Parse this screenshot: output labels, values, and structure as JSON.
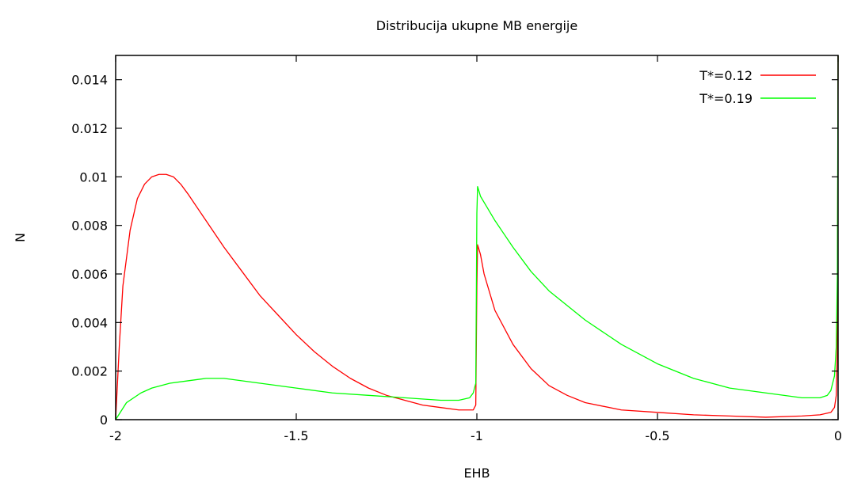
{
  "chart_data": {
    "type": "line",
    "title": "Distribucija ukupne MB energije",
    "xlabel": "EHB",
    "ylabel": "N",
    "xlim": [
      -2,
      0
    ],
    "ylim": [
      0,
      0.015
    ],
    "xticks": [
      -2,
      -1.5,
      -1,
      -0.5,
      0
    ],
    "xtick_labels": [
      "-2",
      "-1.5",
      "-1",
      "-0.5",
      "0"
    ],
    "yticks": [
      0,
      0.002,
      0.004,
      0.006,
      0.008,
      0.01,
      0.012,
      0.014
    ],
    "ytick_labels": [
      "0",
      "0.002",
      "0.004",
      "0.006",
      "0.008",
      "0.01",
      "0.012",
      "0.014"
    ],
    "grid": false,
    "legend_position": "top-right",
    "series": [
      {
        "name": "T*=0.12",
        "color": "#ff0000",
        "x": [
          -2.0,
          -1.99,
          -1.98,
          -1.96,
          -1.94,
          -1.92,
          -1.9,
          -1.88,
          -1.86,
          -1.84,
          -1.82,
          -1.8,
          -1.75,
          -1.7,
          -1.65,
          -1.6,
          -1.55,
          -1.5,
          -1.45,
          -1.4,
          -1.35,
          -1.3,
          -1.25,
          -1.2,
          -1.15,
          -1.1,
          -1.05,
          -1.01,
          -1.003,
          -1.0,
          -0.998,
          -0.99,
          -0.98,
          -0.95,
          -0.9,
          -0.85,
          -0.8,
          -0.75,
          -0.7,
          -0.6,
          -0.5,
          -0.4,
          -0.3,
          -0.2,
          -0.1,
          -0.05,
          -0.02,
          -0.01,
          -0.005,
          -0.002,
          0.0
        ],
        "y": [
          0.0,
          0.003,
          0.0055,
          0.0078,
          0.0091,
          0.0097,
          0.01,
          0.0101,
          0.0101,
          0.01,
          0.0097,
          0.0093,
          0.0082,
          0.0071,
          0.0061,
          0.0051,
          0.0043,
          0.0035,
          0.0028,
          0.0022,
          0.0017,
          0.0013,
          0.001,
          0.0008,
          0.0006,
          0.0005,
          0.0004,
          0.0004,
          0.0006,
          0.0055,
          0.0072,
          0.0068,
          0.006,
          0.0045,
          0.0031,
          0.0021,
          0.0014,
          0.001,
          0.0007,
          0.0004,
          0.0003,
          0.0002,
          0.00015,
          0.0001,
          0.00015,
          0.0002,
          0.0003,
          0.0005,
          0.001,
          0.003,
          0.015
        ]
      },
      {
        "name": "T*=0.19",
        "color": "#00ff00",
        "x": [
          -2.0,
          -1.97,
          -1.93,
          -1.9,
          -1.85,
          -1.8,
          -1.75,
          -1.7,
          -1.6,
          -1.5,
          -1.4,
          -1.3,
          -1.2,
          -1.1,
          -1.05,
          -1.02,
          -1.01,
          -1.003,
          -1.0,
          -0.998,
          -0.99,
          -0.97,
          -0.95,
          -0.9,
          -0.85,
          -0.8,
          -0.7,
          -0.6,
          -0.5,
          -0.4,
          -0.3,
          -0.2,
          -0.1,
          -0.05,
          -0.03,
          -0.02,
          -0.01,
          -0.005,
          -0.002,
          0.0
        ],
        "y": [
          0.0,
          0.0007,
          0.0011,
          0.0013,
          0.0015,
          0.0016,
          0.0017,
          0.0017,
          0.0015,
          0.0013,
          0.0011,
          0.001,
          0.0009,
          0.0008,
          0.0008,
          0.0009,
          0.0011,
          0.0015,
          0.0085,
          0.0096,
          0.0092,
          0.0087,
          0.0082,
          0.0071,
          0.0061,
          0.0053,
          0.0041,
          0.0031,
          0.0023,
          0.0017,
          0.0013,
          0.0011,
          0.0009,
          0.0009,
          0.001,
          0.0012,
          0.0018,
          0.003,
          0.006,
          0.015
        ]
      }
    ]
  }
}
